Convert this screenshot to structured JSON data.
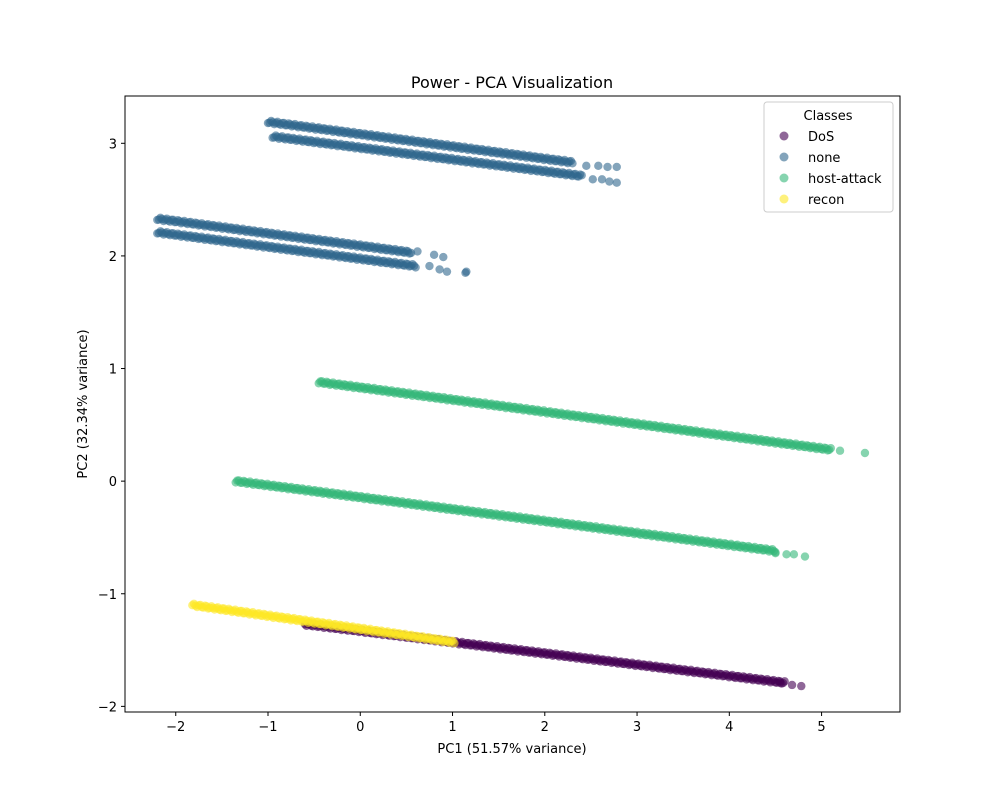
{
  "chart_data": {
    "type": "scatter",
    "title": "Power - PCA Visualization",
    "xlabel": "PC1 (51.57% variance)",
    "ylabel": "PC2 (32.34% variance)",
    "xlim": [
      -2.55,
      5.85
    ],
    "ylim": [
      -2.05,
      3.42
    ],
    "x_ticks": [
      -2,
      -1,
      0,
      1,
      2,
      3,
      4,
      5
    ],
    "x_tick_labels": [
      "−2",
      "−1",
      "0",
      "1",
      "2",
      "3",
      "4",
      "5"
    ],
    "y_ticks": [
      -2,
      -1,
      0,
      1,
      2,
      3
    ],
    "y_tick_labels": [
      "−2",
      "−1",
      "0",
      "1",
      "2",
      "3"
    ],
    "grid": false,
    "legend": {
      "title": "Classes",
      "position": "top-right",
      "entries": [
        {
          "name": "DoS",
          "color": "#440154"
        },
        {
          "name": "none",
          "color": "#31688e"
        },
        {
          "name": "host-attack",
          "color": "#35b779"
        },
        {
          "name": "recon",
          "color": "#fde725"
        }
      ]
    },
    "series": [
      {
        "name": "DoS",
        "color": "#440154",
        "segments": [
          {
            "x0": -0.6,
            "y0": -1.27,
            "x1": 4.6,
            "y1": -1.79
          }
        ],
        "points": [
          [
            4.68,
            -1.81
          ],
          [
            4.78,
            -1.82
          ],
          [
            4.55,
            -1.79
          ]
        ]
      },
      {
        "name": "none",
        "color": "#31688e",
        "segments": [
          {
            "x0": -1.0,
            "y0": 3.19,
            "x1": 2.3,
            "y1": 2.83
          },
          {
            "x0": -0.95,
            "y0": 3.06,
            "x1": 2.4,
            "y1": 2.71
          },
          {
            "x0": -2.2,
            "y0": 2.33,
            "x1": 0.55,
            "y1": 2.03
          },
          {
            "x0": -2.2,
            "y0": 2.21,
            "x1": 0.6,
            "y1": 1.91
          }
        ],
        "points": [
          [
            2.45,
            2.8
          ],
          [
            2.58,
            2.8
          ],
          [
            2.68,
            2.79
          ],
          [
            2.78,
            2.79
          ],
          [
            2.52,
            2.68
          ],
          [
            2.62,
            2.68
          ],
          [
            2.7,
            2.66
          ],
          [
            2.78,
            2.65
          ],
          [
            0.8,
            2.01
          ],
          [
            0.9,
            1.99
          ],
          [
            0.62,
            2.04
          ],
          [
            0.75,
            1.91
          ],
          [
            0.86,
            1.88
          ],
          [
            0.94,
            1.86
          ],
          [
            1.15,
            1.86
          ],
          [
            1.14,
            1.85
          ]
        ]
      },
      {
        "name": "host-attack",
        "color": "#35b779",
        "segments": [
          {
            "x0": -0.45,
            "y0": 0.88,
            "x1": 5.1,
            "y1": 0.28
          },
          {
            "x0": -1.35,
            "y0": 0.0,
            "x1": 4.5,
            "y1": -0.62
          }
        ],
        "points": [
          [
            5.2,
            0.27
          ],
          [
            5.47,
            0.25
          ],
          [
            4.5,
            -0.64
          ],
          [
            4.62,
            -0.65
          ],
          [
            4.7,
            -0.65
          ],
          [
            4.82,
            -0.67
          ]
        ]
      },
      {
        "name": "recon",
        "color": "#fde725",
        "segments": [
          {
            "x0": -1.82,
            "y0": -1.1,
            "x1": 1.02,
            "y1": -1.43
          }
        ],
        "points": []
      }
    ]
  }
}
